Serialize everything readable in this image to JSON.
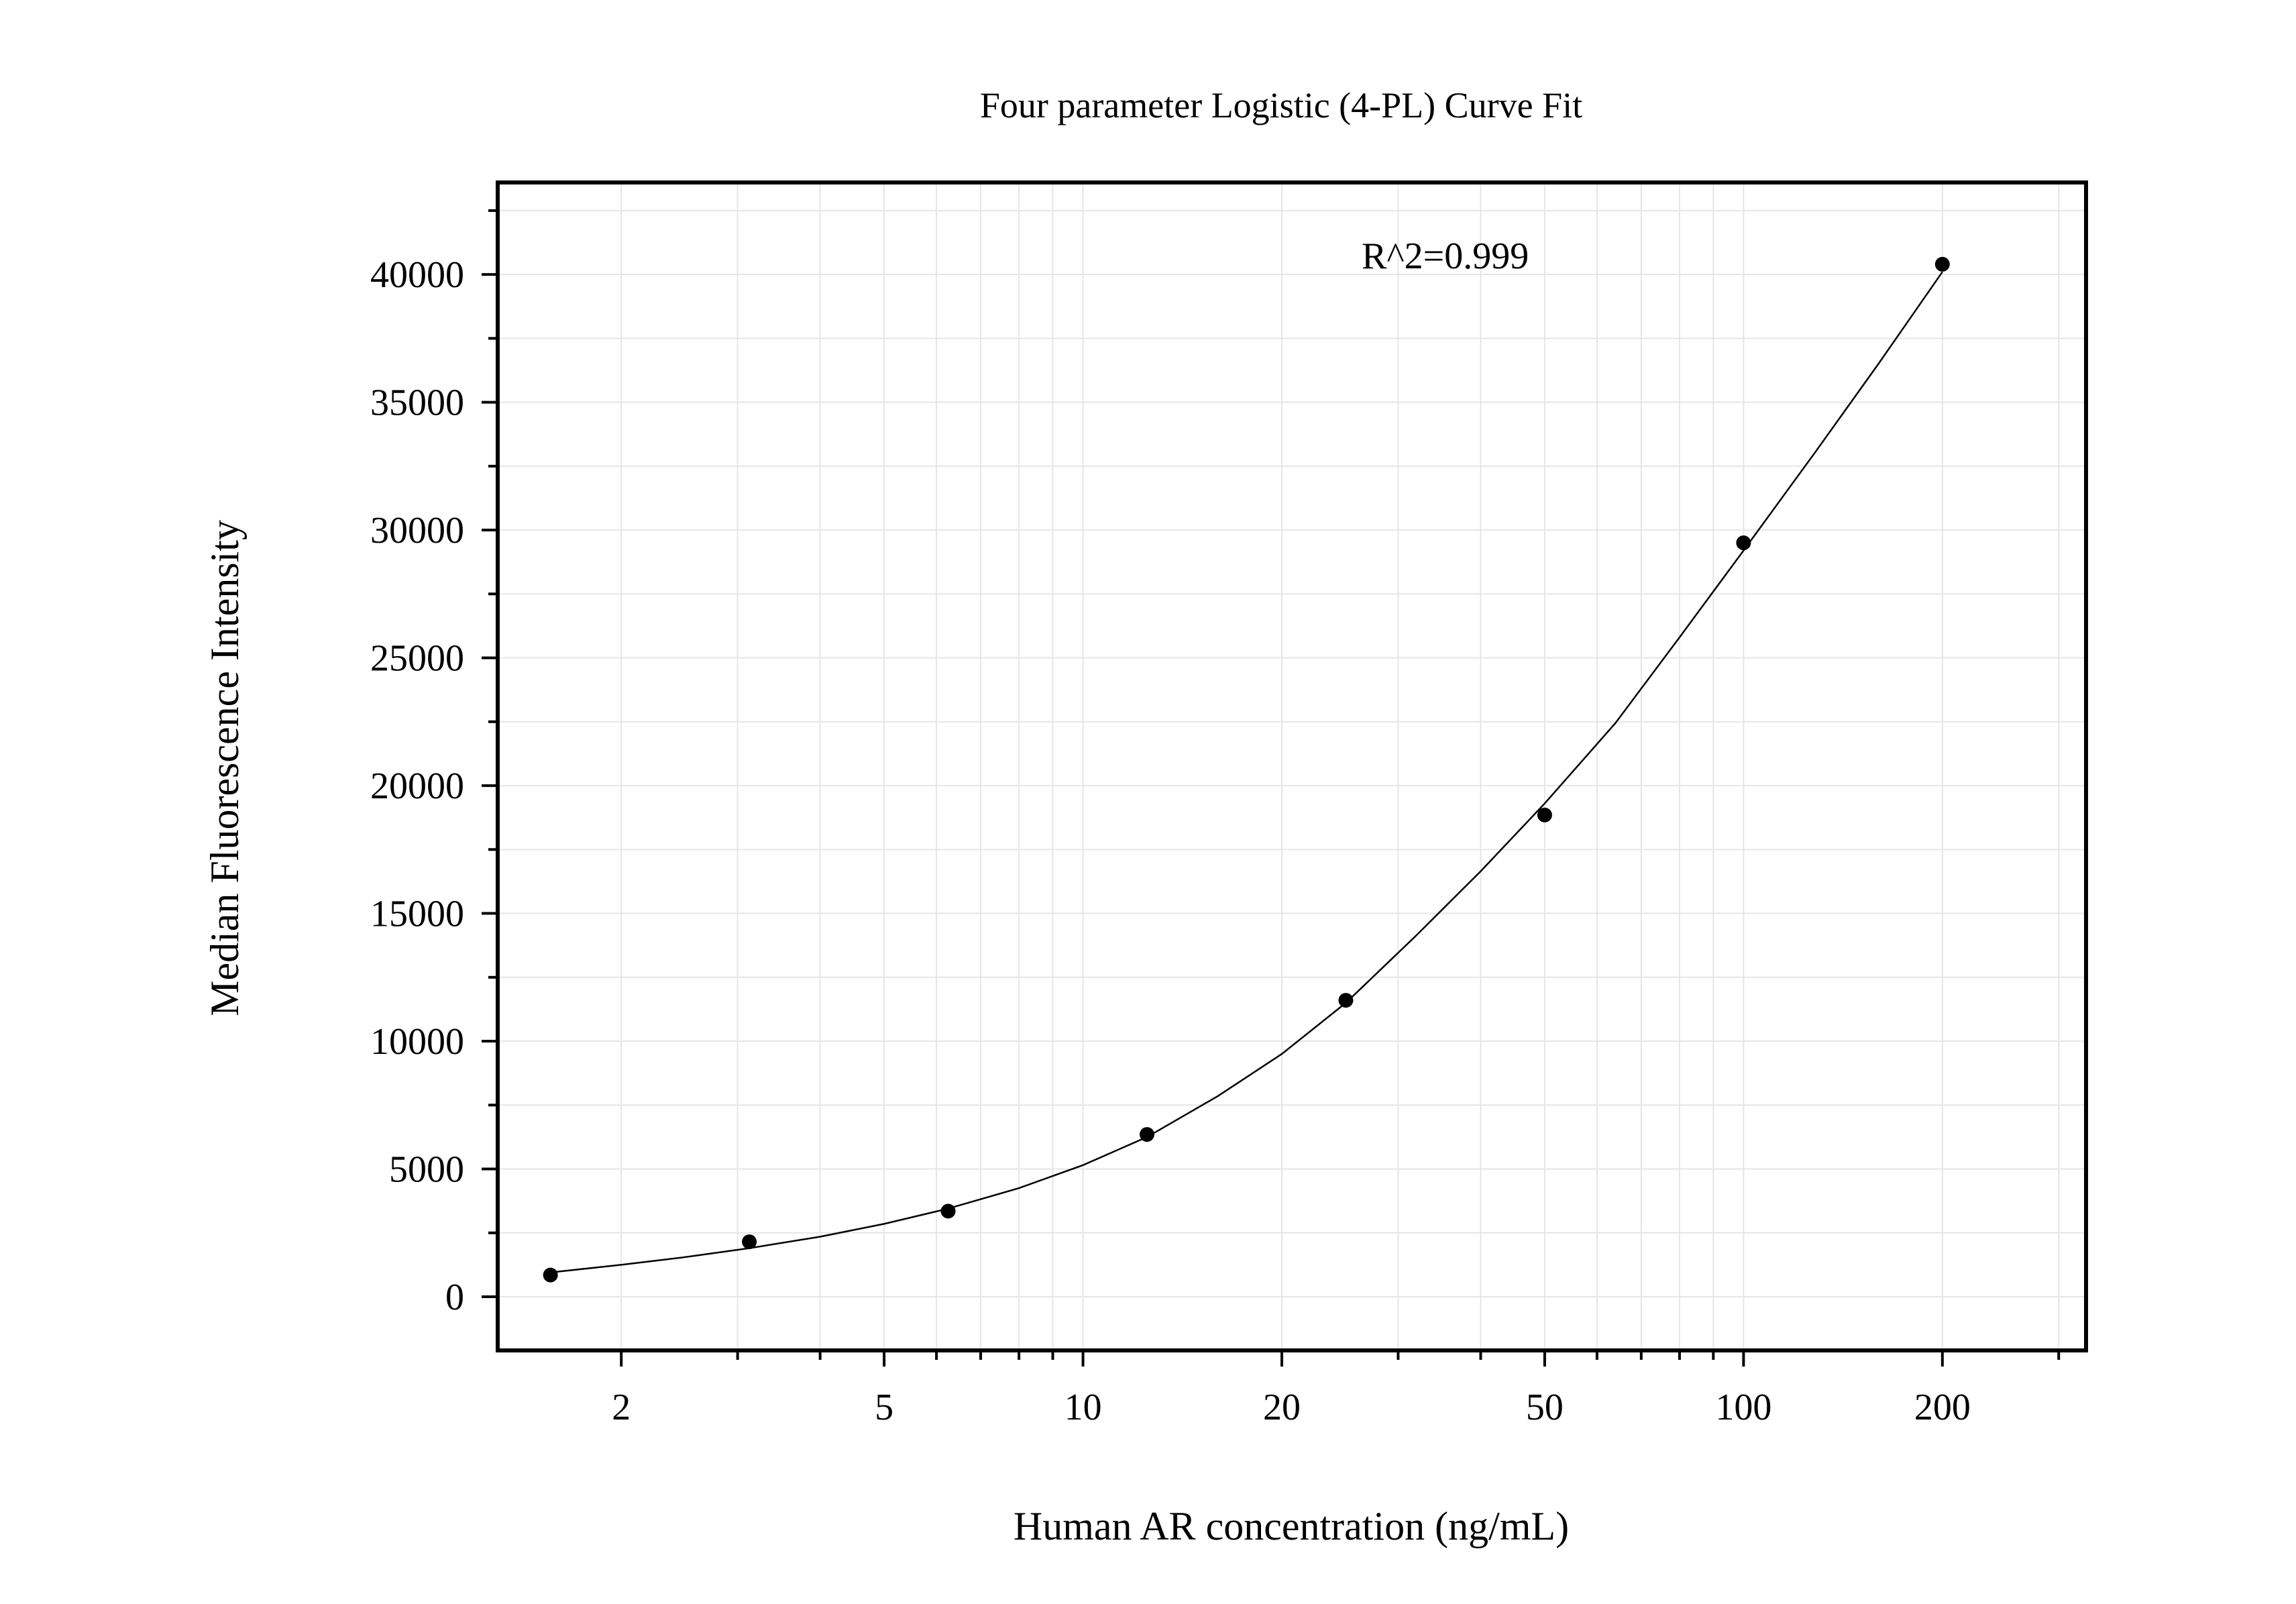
{
  "chart_data": {
    "type": "scatter",
    "title": "Four parameter Logistic (4-PL) Curve Fit",
    "xlabel": "Human AR concentration (ng/mL)",
    "ylabel": "Median Fluorescence Intensity",
    "annotation": "R^2=0.999",
    "x_scale": "log",
    "xlim": [
      1.3,
      330
    ],
    "ylim": [
      -2100,
      43600
    ],
    "grid": true,
    "x_ticks": [
      2,
      5,
      10,
      20,
      50,
      100,
      200
    ],
    "x_tick_labels": [
      "2",
      "5",
      "10",
      "20",
      "50",
      "100",
      "200"
    ],
    "y_ticks": [
      0,
      5000,
      10000,
      15000,
      20000,
      25000,
      30000,
      35000,
      40000
    ],
    "y_tick_labels": [
      "0",
      "5000",
      "10000",
      "15000",
      "20000",
      "25000",
      "30000",
      "35000",
      "40000"
    ],
    "series": [
      {
        "x": [
          1.5625,
          3.125,
          6.25,
          12.5,
          25,
          50,
          100,
          200
        ],
        "y": [
          850,
          2150,
          3350,
          6350,
          11600,
          18850,
          29500,
          40400
        ]
      }
    ],
    "fit_curve": {
      "model": "4PL",
      "x": [
        1.5625,
        2,
        2.5,
        3.125,
        4,
        5,
        6.25,
        8,
        10,
        12.5,
        16,
        20,
        25,
        32,
        40,
        50,
        64,
        80,
        100,
        128,
        160,
        200
      ],
      "y": [
        950,
        1250,
        1550,
        1900,
        2350,
        2850,
        3450,
        4250,
        5150,
        6250,
        7850,
        9500,
        11500,
        14150,
        16650,
        19300,
        22450,
        25800,
        29200,
        33000,
        36500,
        40100
      ]
    },
    "colors": {
      "point": "#000000",
      "line": "#000000",
      "grid": "#e6e6e6",
      "axis": "#000000"
    }
  }
}
